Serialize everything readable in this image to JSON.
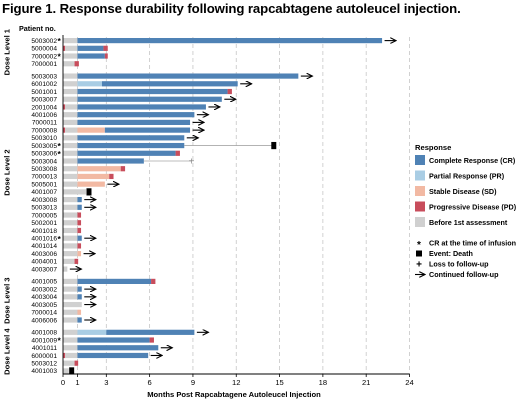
{
  "figure_title": "Figure 1. Response durability following rapcabtagene autoleucel injection.",
  "patient_header": "Patient no.",
  "colors": {
    "CR": "#4f82b5",
    "PR": "#a9cde4",
    "SD": "#f2b9a3",
    "PD": "#c84d5c",
    "BEFORE": "#d0d0d0",
    "grid": "#c6c6c6",
    "ltfu_line": "#a8a8a8"
  },
  "chart_data": {
    "type": "bar",
    "orientation": "horizontal",
    "subtype": "swimmer-plot",
    "xlabel": "Months Post Rapcabtagene Autoleucel Injection",
    "xlim": [
      0,
      24
    ],
    "xticks": [
      0,
      1,
      3,
      6,
      9,
      12,
      15,
      18,
      21,
      24
    ],
    "grid": "vertical-dashed",
    "legend_position": "right",
    "legend": {
      "title": "Response",
      "items": [
        {
          "key": "CR",
          "label": "Complete Response (CR)"
        },
        {
          "key": "PR",
          "label": "Partial Response (PR)"
        },
        {
          "key": "SD",
          "label": "Stable Disease (SD)"
        },
        {
          "key": "PD",
          "label": "Progressive Disease (PD)"
        },
        {
          "key": "BEFORE",
          "label": "Before 1st assessment"
        }
      ],
      "markers": [
        {
          "symbol": "*",
          "label": "CR at the time of infusion"
        },
        {
          "symbol": "square",
          "label": "Event: Death"
        },
        {
          "symbol": "+",
          "label": "Loss to follow-up"
        },
        {
          "symbol": "arrow",
          "label": "Continued follow-up"
        }
      ]
    },
    "groups": [
      {
        "label": "Dose Level 1",
        "patients": [
          {
            "id": "5003002",
            "star": true,
            "segments": [
              {
                "r": "BEFORE",
                "s": 0,
                "e": 1
              },
              {
                "r": "CR",
                "s": 1,
                "e": 22.1
              }
            ],
            "arrow": true
          },
          {
            "id": "5000004",
            "star": false,
            "segments": [
              {
                "r": "PD",
                "s": 0,
                "e": 0.15
              },
              {
                "r": "BEFORE",
                "s": 0.15,
                "e": 1
              },
              {
                "r": "CR",
                "s": 1,
                "e": 2.8
              },
              {
                "r": "PD",
                "s": 2.8,
                "e": 3.1
              }
            ]
          },
          {
            "id": "7000002",
            "star": true,
            "segments": [
              {
                "r": "BEFORE",
                "s": 0,
                "e": 1
              },
              {
                "r": "CR",
                "s": 1,
                "e": 2.9
              },
              {
                "r": "PD",
                "s": 2.9,
                "e": 3.1
              }
            ]
          },
          {
            "id": "7000001",
            "star": false,
            "segments": [
              {
                "r": "BEFORE",
                "s": 0,
                "e": 0.8
              },
              {
                "r": "PD",
                "s": 0.8,
                "e": 1.1
              }
            ]
          }
        ]
      },
      {
        "label": "Dose Level 2",
        "patients": [
          {
            "id": "5003003",
            "star": false,
            "segments": [
              {
                "r": "BEFORE",
                "s": 0,
                "e": 1
              },
              {
                "r": "CR",
                "s": 1,
                "e": 16.3
              }
            ],
            "arrow": true
          },
          {
            "id": "6001002",
            "star": false,
            "segments": [
              {
                "r": "BEFORE",
                "s": 0,
                "e": 1
              },
              {
                "r": "PR",
                "s": 1,
                "e": 2.7
              },
              {
                "r": "CR",
                "s": 2.7,
                "e": 12.1
              }
            ],
            "arrow": true
          },
          {
            "id": "5001001",
            "star": false,
            "segments": [
              {
                "r": "BEFORE",
                "s": 0,
                "e": 1
              },
              {
                "r": "CR",
                "s": 1,
                "e": 11.4
              },
              {
                "r": "PD",
                "s": 11.4,
                "e": 11.7
              }
            ]
          },
          {
            "id": "5003007",
            "star": false,
            "segments": [
              {
                "r": "BEFORE",
                "s": 0,
                "e": 1
              },
              {
                "r": "CR",
                "s": 1,
                "e": 11
              }
            ],
            "arrow": true
          },
          {
            "id": "2001004",
            "star": false,
            "segments": [
              {
                "r": "PD",
                "s": 0,
                "e": 0.15
              },
              {
                "r": "BEFORE",
                "s": 0.15,
                "e": 1
              },
              {
                "r": "CR",
                "s": 1,
                "e": 9.9
              }
            ],
            "arrow": true
          },
          {
            "id": "4001006",
            "star": false,
            "segments": [
              {
                "r": "BEFORE",
                "s": 0,
                "e": 1
              },
              {
                "r": "CR",
                "s": 1,
                "e": 9.1
              }
            ],
            "arrow": true
          },
          {
            "id": "7000011",
            "star": false,
            "segments": [
              {
                "r": "BEFORE",
                "s": 0,
                "e": 1
              },
              {
                "r": "CR",
                "s": 1,
                "e": 8.8
              }
            ],
            "arrow": true
          },
          {
            "id": "7000008",
            "star": false,
            "segments": [
              {
                "r": "PD",
                "s": 0,
                "e": 0.15
              },
              {
                "r": "BEFORE",
                "s": 0.15,
                "e": 1
              },
              {
                "r": "SD",
                "s": 1,
                "e": 2.9
              },
              {
                "r": "CR",
                "s": 2.9,
                "e": 8.8
              }
            ],
            "arrow": true
          },
          {
            "id": "5003010",
            "star": false,
            "segments": [
              {
                "r": "BEFORE",
                "s": 0,
                "e": 1
              },
              {
                "r": "CR",
                "s": 1,
                "e": 8.4
              }
            ],
            "arrow": true
          },
          {
            "id": "5003005",
            "star": true,
            "segments": [
              {
                "r": "BEFORE",
                "s": 0,
                "e": 1
              },
              {
                "r": "CR",
                "s": 1,
                "e": 8.4
              }
            ],
            "ltfu_line_to": 14.6,
            "death": 14.6
          },
          {
            "id": "5003006",
            "star": true,
            "segments": [
              {
                "r": "BEFORE",
                "s": 0,
                "e": 1
              },
              {
                "r": "CR",
                "s": 1,
                "e": 7.8
              },
              {
                "r": "PD",
                "s": 7.8,
                "e": 8.1
              }
            ]
          },
          {
            "id": "5003004",
            "star": false,
            "segments": [
              {
                "r": "BEFORE",
                "s": 0,
                "e": 1
              },
              {
                "r": "CR",
                "s": 1,
                "e": 5.6
              }
            ],
            "ltfu_line_to": 8.9,
            "ltfu": 8.9
          },
          {
            "id": "5003008",
            "star": false,
            "segments": [
              {
                "r": "BEFORE",
                "s": 0,
                "e": 1
              },
              {
                "r": "SD",
                "s": 1,
                "e": 4.0
              },
              {
                "r": "PD",
                "s": 4.0,
                "e": 4.3
              }
            ]
          },
          {
            "id": "7000013",
            "star": false,
            "segments": [
              {
                "r": "BEFORE",
                "s": 0,
                "e": 1
              },
              {
                "r": "SD",
                "s": 1,
                "e": 3.2
              },
              {
                "r": "PD",
                "s": 3.2,
                "e": 3.5
              }
            ]
          },
          {
            "id": "5005001",
            "star": false,
            "segments": [
              {
                "r": "BEFORE",
                "s": 0,
                "e": 1
              },
              {
                "r": "SD",
                "s": 1,
                "e": 2.9
              }
            ],
            "arrow": true
          },
          {
            "id": "4001007",
            "star": false,
            "segments": [
              {
                "r": "BEFORE",
                "s": 0,
                "e": 1.6
              }
            ],
            "death": 1.8
          },
          {
            "id": "4003008",
            "star": false,
            "segments": [
              {
                "r": "BEFORE",
                "s": 0,
                "e": 1
              },
              {
                "r": "CR",
                "s": 1,
                "e": 1.3
              }
            ],
            "arrow": true
          },
          {
            "id": "5003013",
            "star": false,
            "segments": [
              {
                "r": "BEFORE",
                "s": 0,
                "e": 1
              },
              {
                "r": "CR",
                "s": 1,
                "e": 1.3
              }
            ],
            "arrow": true
          },
          {
            "id": "7000005",
            "star": false,
            "segments": [
              {
                "r": "BEFORE",
                "s": 0,
                "e": 1
              },
              {
                "r": "PD",
                "s": 1,
                "e": 1.25
              }
            ]
          },
          {
            "id": "5002001",
            "star": false,
            "segments": [
              {
                "r": "BEFORE",
                "s": 0,
                "e": 1
              },
              {
                "r": "PD",
                "s": 1,
                "e": 1.25
              }
            ]
          },
          {
            "id": "4001018",
            "star": false,
            "segments": [
              {
                "r": "BEFORE",
                "s": 0,
                "e": 1
              },
              {
                "r": "PD",
                "s": 1,
                "e": 1.25
              }
            ]
          },
          {
            "id": "4001016",
            "star": true,
            "segments": [
              {
                "r": "BEFORE",
                "s": 0,
                "e": 1
              },
              {
                "r": "CR",
                "s": 1,
                "e": 1.3
              }
            ],
            "arrow": true
          },
          {
            "id": "4001014",
            "star": false,
            "segments": [
              {
                "r": "BEFORE",
                "s": 0,
                "e": 1
              },
              {
                "r": "PD",
                "s": 1,
                "e": 1.25
              }
            ]
          },
          {
            "id": "4003006",
            "star": false,
            "segments": [
              {
                "r": "BEFORE",
                "s": 0,
                "e": 1
              },
              {
                "r": "SD",
                "s": 1,
                "e": 1.25
              }
            ],
            "arrow": true
          },
          {
            "id": "4004001",
            "star": false,
            "segments": [
              {
                "r": "BEFORE",
                "s": 0,
                "e": 0.8
              },
              {
                "r": "PD",
                "s": 0.8,
                "e": 1.05
              }
            ]
          },
          {
            "id": "4003007",
            "star": false,
            "segments": [
              {
                "r": "BEFORE",
                "s": 0,
                "e": 0.3
              }
            ],
            "arrow": true
          }
        ]
      },
      {
        "label": "Dose Level 3",
        "patients": [
          {
            "id": "4001005",
            "star": false,
            "segments": [
              {
                "r": "BEFORE",
                "s": 0,
                "e": 1
              },
              {
                "r": "CR",
                "s": 1,
                "e": 6.1
              },
              {
                "r": "PD",
                "s": 6.1,
                "e": 6.4
              }
            ]
          },
          {
            "id": "4003002",
            "star": false,
            "segments": [
              {
                "r": "BEFORE",
                "s": 0,
                "e": 1
              },
              {
                "r": "CR",
                "s": 1,
                "e": 1.3
              }
            ],
            "arrow": true
          },
          {
            "id": "4003004",
            "star": false,
            "segments": [
              {
                "r": "BEFORE",
                "s": 0,
                "e": 1
              },
              {
                "r": "CR",
                "s": 1,
                "e": 1.3
              }
            ],
            "arrow": true
          },
          {
            "id": "4003005",
            "star": false,
            "segments": [
              {
                "r": "BEFORE",
                "s": 0,
                "e": 1.3
              }
            ],
            "arrow": true
          },
          {
            "id": "7000014",
            "star": false,
            "segments": [
              {
                "r": "BEFORE",
                "s": 0,
                "e": 1
              },
              {
                "r": "SD",
                "s": 1,
                "e": 1.25
              }
            ]
          },
          {
            "id": "4006006",
            "star": false,
            "segments": [
              {
                "r": "BEFORE",
                "s": 0,
                "e": 1
              },
              {
                "r": "CR",
                "s": 1,
                "e": 1.3
              }
            ],
            "arrow": true
          }
        ]
      },
      {
        "label": "Dose Level 4",
        "patients": [
          {
            "id": "4001008",
            "star": false,
            "segments": [
              {
                "r": "BEFORE",
                "s": 0,
                "e": 1
              },
              {
                "r": "PR",
                "s": 1,
                "e": 3.0
              },
              {
                "r": "CR",
                "s": 3.0,
                "e": 9.1
              }
            ],
            "arrow": true
          },
          {
            "id": "4001009",
            "star": true,
            "segments": [
              {
                "r": "BEFORE",
                "s": 0,
                "e": 1
              },
              {
                "r": "CR",
                "s": 1,
                "e": 6.0
              },
              {
                "r": "PD",
                "s": 6.0,
                "e": 6.3
              }
            ]
          },
          {
            "id": "4001011",
            "star": false,
            "segments": [
              {
                "r": "BEFORE",
                "s": 0,
                "e": 1
              },
              {
                "r": "CR",
                "s": 1,
                "e": 6.6
              }
            ],
            "arrow": true
          },
          {
            "id": "6000001",
            "star": false,
            "segments": [
              {
                "r": "PD",
                "s": 0,
                "e": 0.15
              },
              {
                "r": "BEFORE",
                "s": 0.15,
                "e": 1
              },
              {
                "r": "CR",
                "s": 1,
                "e": 5.9
              }
            ],
            "arrow": true
          },
          {
            "id": "5003012",
            "star": false,
            "segments": [
              {
                "r": "BEFORE",
                "s": 0,
                "e": 0.8
              },
              {
                "r": "PD",
                "s": 0.8,
                "e": 1.05
              }
            ]
          },
          {
            "id": "4001003",
            "star": false,
            "segments": [
              {
                "r": "BEFORE",
                "s": 0,
                "e": 0.4
              }
            ],
            "death": 0.6
          }
        ]
      }
    ]
  }
}
